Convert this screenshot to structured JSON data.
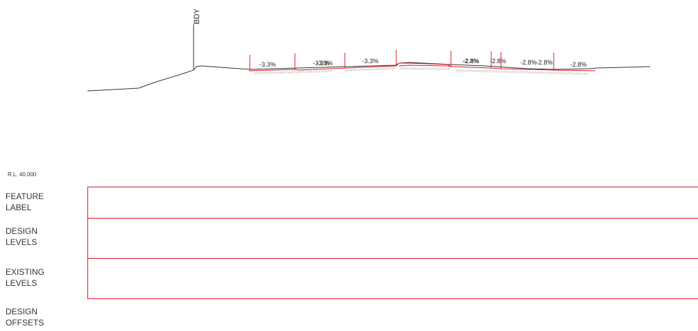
{
  "drawing": {
    "boundary_label": "BDY",
    "grade_labels": [
      "-3.3%",
      "-3.3%",
      "-3.3%",
      "-3.3%",
      "-2.8%",
      "-2.8%",
      "-2.8%",
      "-2.8%",
      "-2.8%"
    ]
  },
  "table": {
    "reference_level": "R.L. 40.000",
    "rows": [
      {
        "line1": "FEATURE",
        "line2": "LABEL"
      },
      {
        "line1": "DESIGN",
        "line2": "LEVELS"
      },
      {
        "line1": "EXISTING",
        "line2": "LEVELS"
      },
      {
        "line1": "DESIGN",
        "line2": "OFFSETS"
      }
    ]
  },
  "colors": {
    "design_line": "#e0171f",
    "existing_line": "#333333"
  }
}
